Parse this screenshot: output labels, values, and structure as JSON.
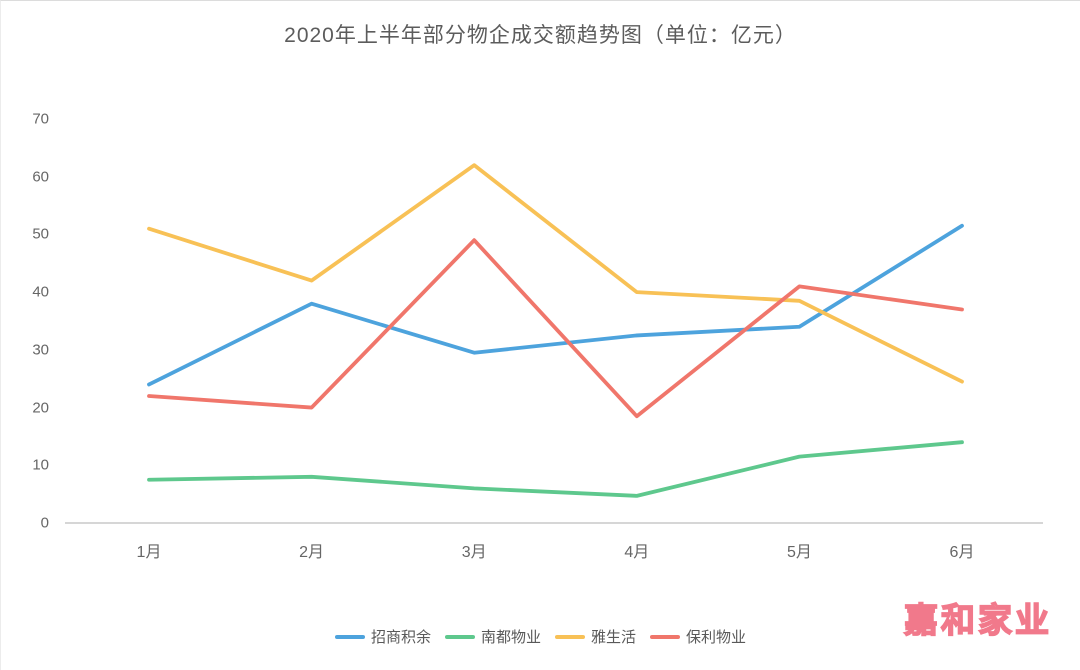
{
  "title": "2020年上半年部分物企成交额趋势图（单位：亿元）",
  "watermark": "嘉和家业",
  "chart_data": {
    "type": "line",
    "title": "2020年上半年部分物企成交额趋势图（单位：亿元）",
    "categories": [
      "1月",
      "2月",
      "3月",
      "4月",
      "5月",
      "6月"
    ],
    "series": [
      {
        "name": "招商积余",
        "color": "#4da3dd",
        "values": [
          24,
          38,
          29.5,
          32.5,
          34,
          51.5
        ]
      },
      {
        "name": "南都物业",
        "color": "#5ec88d",
        "values": [
          7.5,
          8,
          6,
          4.7,
          11.5,
          14
        ]
      },
      {
        "name": "雅生活",
        "color": "#f8c156",
        "values": [
          51,
          42,
          62,
          40,
          38.5,
          24.5
        ]
      },
      {
        "name": "保利物业",
        "color": "#f0766b",
        "values": [
          22,
          20,
          49,
          18.5,
          41,
          37
        ]
      }
    ],
    "xlabel": "",
    "ylabel": "",
    "ylim": [
      0,
      70
    ],
    "yticks": [
      0,
      10,
      20,
      30,
      40,
      50,
      60,
      70
    ],
    "grid": false,
    "legend_position": "bottom"
  }
}
